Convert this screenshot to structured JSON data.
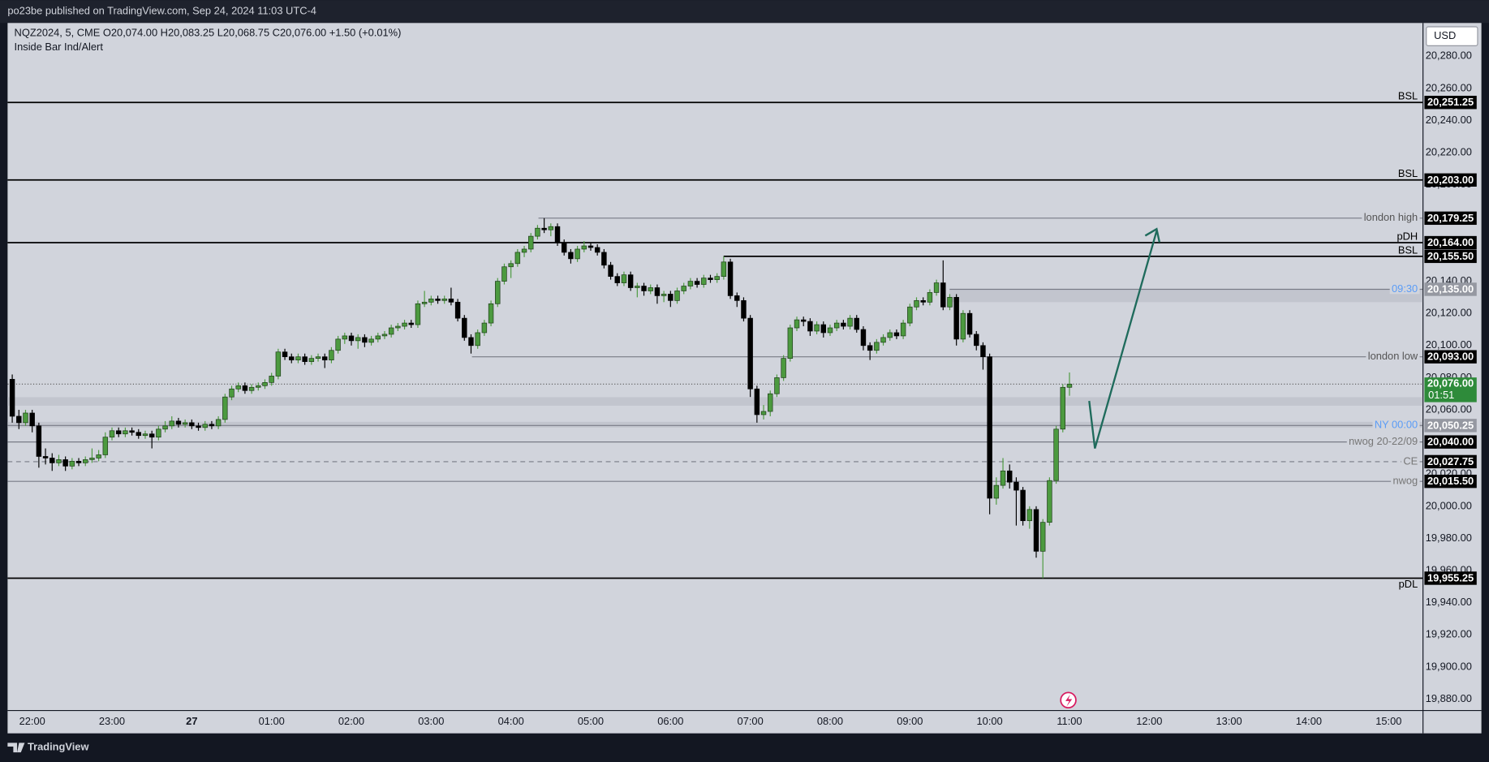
{
  "header": {
    "text": "po23be published on TradingView.com, Sep 24, 2024 11:03 UTC-4"
  },
  "footer": {
    "brand": "TradingView"
  },
  "chart_data": {
    "type": "candlestick",
    "symbol_legend": "NQZ2024, 5, CME  O20,074.00  H20,083.25  L20,068.75  C20,076.00  +1.50 (+0.01%)",
    "indicator": "Inside Bar Ind/Alert",
    "currency": "USD",
    "up_color": "#4c9a3f",
    "down_color": "#000000",
    "ohlc": [
      [
        20079,
        20082,
        20052,
        20056
      ],
      [
        20056,
        20060,
        20048,
        20052
      ],
      [
        20052,
        20060,
        20050,
        20058
      ],
      [
        20058,
        20060,
        20046,
        20050
      ],
      [
        20050,
        20052,
        20024,
        20031
      ],
      [
        20031,
        20036,
        20026,
        20030
      ],
      [
        20030,
        20033,
        20022,
        20027
      ],
      [
        20027,
        20032,
        20025,
        20029
      ],
      [
        20029,
        20031,
        20022,
        20025
      ],
      [
        20025,
        20030,
        20023,
        20028
      ],
      [
        20028,
        20030,
        20025,
        20027
      ],
      [
        20027,
        20031,
        20025,
        20029
      ],
      [
        20029,
        20036,
        20027,
        20030
      ],
      [
        20030,
        20035,
        20028,
        20032
      ],
      [
        20032,
        20046,
        20030,
        20043
      ],
      [
        20043,
        20049,
        20041,
        20047
      ],
      [
        20047,
        20049,
        20043,
        20045
      ],
      [
        20045,
        20049,
        20043,
        20047
      ],
      [
        20047,
        20049,
        20044,
        20046
      ],
      [
        20046,
        20048,
        20042,
        20044
      ],
      [
        20044,
        20047,
        20042,
        20045
      ],
      [
        20045,
        20047,
        20036,
        20043
      ],
      [
        20043,
        20050,
        20041,
        20048
      ],
      [
        20048,
        20053,
        20046,
        20050
      ],
      [
        20050,
        20056,
        20048,
        20053
      ],
      [
        20053,
        20055,
        20049,
        20051
      ],
      [
        20051,
        20054,
        20049,
        20052
      ],
      [
        20052,
        20054,
        20048,
        20050
      ],
      [
        20050,
        20052,
        20047,
        20049
      ],
      [
        20049,
        20053,
        20047,
        20051
      ],
      [
        20051,
        20053,
        20048,
        20050
      ],
      [
        20050,
        20056,
        20048,
        20054
      ],
      [
        20054,
        20070,
        20052,
        20068
      ],
      [
        20068,
        20075,
        20066,
        20073
      ],
      [
        20073,
        20077,
        20071,
        20075
      ],
      [
        20075,
        20077,
        20070,
        20072
      ],
      [
        20072,
        20076,
        20070,
        20074
      ],
      [
        20074,
        20077,
        20072,
        20075
      ],
      [
        20075,
        20079,
        20073,
        20077
      ],
      [
        20077,
        20083,
        20075,
        20081
      ],
      [
        20081,
        20098,
        20079,
        20096
      ],
      [
        20096,
        20098,
        20091,
        20093
      ],
      [
        20093,
        20095,
        20089,
        20091
      ],
      [
        20091,
        20095,
        20089,
        20093
      ],
      [
        20093,
        20095,
        20088,
        20090
      ],
      [
        20090,
        20094,
        20088,
        20092
      ],
      [
        20092,
        20095,
        20090,
        20093
      ],
      [
        20093,
        20095,
        20086,
        20091
      ],
      [
        20091,
        20099,
        20089,
        20097
      ],
      [
        20097,
        20106,
        20095,
        20104
      ],
      [
        20104,
        20108,
        20101,
        20106
      ],
      [
        20106,
        20108,
        20100,
        20103
      ],
      [
        20103,
        20107,
        20098,
        20105
      ],
      [
        20105,
        20107,
        20099,
        20102
      ],
      [
        20102,
        20106,
        20100,
        20104
      ],
      [
        20104,
        20108,
        20102,
        20106
      ],
      [
        20106,
        20109,
        20104,
        20107
      ],
      [
        20107,
        20113,
        20105,
        20111
      ],
      [
        20111,
        20114,
        20109,
        20112
      ],
      [
        20112,
        20116,
        20110,
        20114
      ],
      [
        20114,
        20116,
        20111,
        20113
      ],
      [
        20113,
        20128,
        20111,
        20126
      ],
      [
        20126,
        20134,
        20124,
        20127
      ],
      [
        20127,
        20131,
        20125,
        20129
      ],
      [
        20129,
        20131,
        20126,
        20128
      ],
      [
        20128,
        20131,
        20126,
        20129
      ],
      [
        20129,
        20136,
        20125,
        20127
      ],
      [
        20127,
        20129,
        20115,
        20117
      ],
      [
        20117,
        20119,
        20103,
        20105
      ],
      [
        20105,
        20107,
        20095,
        20100
      ],
      [
        20100,
        20110,
        20098,
        20108
      ],
      [
        20108,
        20116,
        20106,
        20114
      ],
      [
        20114,
        20128,
        20112,
        20126
      ],
      [
        20126,
        20142,
        20124,
        20140
      ],
      [
        20140,
        20151,
        20138,
        20149
      ],
      [
        20149,
        20153,
        20142,
        20151
      ],
      [
        20151,
        20160,
        20149,
        20158
      ],
      [
        20158,
        20162,
        20155,
        20160
      ],
      [
        20160,
        20170,
        20158,
        20168
      ],
      [
        20168,
        20175,
        20166,
        20173
      ],
      [
        20173,
        20179.25,
        20170,
        20172
      ],
      [
        20172,
        20176,
        20168,
        20174
      ],
      [
        20174,
        20176,
        20162,
        20164
      ],
      [
        20164,
        20166,
        20156,
        20158
      ],
      [
        20158,
        20160,
        20151,
        20154
      ],
      [
        20154,
        20162,
        20152,
        20160
      ],
      [
        20160,
        20165,
        20158,
        20162
      ],
      [
        20162,
        20164,
        20159,
        20161
      ],
      [
        20161,
        20163,
        20156,
        20158
      ],
      [
        20158,
        20160,
        20148,
        20150
      ],
      [
        20150,
        20152,
        20141,
        20143
      ],
      [
        20143,
        20145,
        20137,
        20139
      ],
      [
        20139,
        20146,
        20137,
        20144
      ],
      [
        20144,
        20146,
        20134,
        20136
      ],
      [
        20136,
        20139,
        20130,
        20137
      ],
      [
        20137,
        20139,
        20131,
        20134
      ],
      [
        20134,
        20138,
        20132,
        20136
      ],
      [
        20136,
        20138,
        20126,
        20131
      ],
      [
        20131,
        20134,
        20127,
        20132
      ],
      [
        20132,
        20134,
        20124,
        20128
      ],
      [
        20128,
        20136,
        20126,
        20134
      ],
      [
        20134,
        20139,
        20132,
        20137
      ],
      [
        20137,
        20142,
        20135,
        20140
      ],
      [
        20140,
        20142,
        20136,
        20138
      ],
      [
        20138,
        20144,
        20136,
        20142
      ],
      [
        20142,
        20144,
        20139,
        20141
      ],
      [
        20141,
        20145,
        20139,
        20143
      ],
      [
        20143,
        20155.5,
        20141,
        20152
      ],
      [
        20152,
        20154,
        20129,
        20131
      ],
      [
        20131,
        20133,
        20124,
        20128
      ],
      [
        20128,
        20130,
        20115,
        20117
      ],
      [
        20117,
        20119,
        20068,
        20073
      ],
      [
        20073,
        20075,
        20052,
        20057
      ],
      [
        20057,
        20063,
        20054,
        20059
      ],
      [
        20059,
        20072,
        20056,
        20070
      ],
      [
        20070,
        20082,
        20068,
        20080
      ],
      [
        20080,
        20094,
        20078,
        20092
      ],
      [
        20092,
        20113,
        20090,
        20111
      ],
      [
        20111,
        20118,
        20109,
        20116
      ],
      [
        20116,
        20118,
        20112,
        20115
      ],
      [
        20115,
        20117,
        20106,
        20109
      ],
      [
        20109,
        20115,
        20107,
        20113
      ],
      [
        20113,
        20115,
        20105,
        20108
      ],
      [
        20108,
        20113,
        20106,
        20111
      ],
      [
        20111,
        20116,
        20109,
        20114
      ],
      [
        20114,
        20116,
        20110,
        20112
      ],
      [
        20112,
        20119,
        20110,
        20117
      ],
      [
        20117,
        20119,
        20108,
        20110
      ],
      [
        20110,
        20112,
        20097,
        20100
      ],
      [
        20100,
        20102,
        20091,
        20097
      ],
      [
        20097,
        20104,
        20095,
        20102
      ],
      [
        20102,
        20107,
        20100,
        20105
      ],
      [
        20105,
        20110,
        20103,
        20108
      ],
      [
        20108,
        20110,
        20104,
        20106
      ],
      [
        20106,
        20116,
        20104,
        20114
      ],
      [
        20114,
        20126,
        20112,
        20124
      ],
      [
        20124,
        20130,
        20122,
        20128
      ],
      [
        20128,
        20130,
        20125,
        20127
      ],
      [
        20127,
        20135,
        20125,
        20133
      ],
      [
        20133,
        20141,
        20131,
        20139
      ],
      [
        20139,
        20153,
        20122,
        20124
      ],
      [
        20124,
        20132,
        20122,
        20130
      ],
      [
        20130,
        20132,
        20100,
        20104
      ],
      [
        20104,
        20122,
        20102,
        20120
      ],
      [
        20120,
        20122,
        20105,
        20107
      ],
      [
        20107,
        20109,
        20097,
        20100
      ],
      [
        20100,
        20102,
        20085,
        20093
      ],
      [
        20093,
        20095,
        19995,
        20005
      ],
      [
        20005,
        20018,
        20001,
        20013
      ],
      [
        20013,
        20030,
        20011,
        20022
      ],
      [
        20022,
        20026,
        20011,
        20015
      ],
      [
        20015,
        20018,
        19988,
        20010
      ],
      [
        20010,
        20012,
        19988,
        19991
      ],
      [
        19991,
        20000,
        19986,
        19998
      ],
      [
        19998,
        20000,
        19968,
        19972
      ],
      [
        19972,
        19992,
        19955.25,
        19990
      ],
      [
        19990,
        20018,
        19988,
        20016
      ],
      [
        20016,
        20050,
        20014,
        20048
      ],
      [
        20048,
        20076,
        20046,
        20074
      ],
      [
        20074,
        20083.25,
        20068.75,
        20076
      ]
    ],
    "xlim": [
      -0.7,
      212.1
    ],
    "xticks": [
      {
        "value": 3,
        "label": "22:00"
      },
      {
        "value": 15,
        "label": "23:00"
      },
      27,
      {
        "value": 39,
        "label": "01:00"
      },
      {
        "value": 51,
        "label": "02:00"
      },
      {
        "value": 63,
        "label": "03:00"
      },
      {
        "value": 75,
        "label": "04:00"
      },
      {
        "value": 87,
        "label": "05:00"
      },
      {
        "value": 99,
        "label": "06:00"
      },
      {
        "value": 111,
        "label": "07:00"
      },
      {
        "value": 123,
        "label": "08:00"
      },
      {
        "value": 135,
        "label": "09:00"
      },
      {
        "value": 147,
        "label": "10:00"
      },
      {
        "value": 159,
        "label": "11:00"
      },
      {
        "value": 171,
        "label": "12:00"
      },
      {
        "value": 183,
        "label": "13:00"
      },
      {
        "value": 195,
        "label": "14:00"
      },
      {
        "value": 207,
        "label": "15:00"
      }
    ],
    "ylim": [
      19872.9,
      20300.7
    ],
    "yticks": [
      {
        "value": 20280,
        "label": "20,280.00"
      },
      {
        "value": 20260,
        "label": "20,260.00"
      },
      {
        "value": 20240,
        "label": "20,240.00"
      },
      {
        "value": 20220,
        "label": "20,220.00"
      },
      {
        "value": 20200,
        "label": "20,200.00"
      },
      {
        "value": 20140,
        "label": "20,140.00"
      },
      {
        "value": 20120,
        "label": "20,120.00"
      },
      {
        "value": 20100,
        "label": "20,100.00"
      },
      {
        "value": 20080,
        "label": "20,080.00"
      },
      {
        "value": 20060,
        "label": "20,060.00"
      },
      {
        "value": 20020,
        "label": "20,020.00"
      },
      {
        "value": 20000,
        "label": "20,000.00"
      },
      {
        "value": 19980,
        "label": "19,980.00"
      },
      {
        "value": 19960,
        "label": "19,960.00"
      },
      {
        "value": 19940,
        "label": "19,940.00"
      },
      {
        "value": 19920,
        "label": "19,920.00"
      },
      {
        "value": 19900,
        "label": "19,900.00"
      },
      {
        "value": 19880,
        "label": "19,880.00"
      }
    ],
    "levels": [
      {
        "name": "BSL",
        "value": 20251.25,
        "value_label": "20,251.25",
        "color": "#000000",
        "badge_color": "#000000"
      },
      {
        "name": "BSL",
        "value": 20203.0,
        "value_label": "20,203.00",
        "color": "#000000",
        "badge_color": "#000000"
      },
      {
        "name": "london high",
        "value": 20179.25,
        "value_label": "20,179.25",
        "color": "#787b86",
        "badge_color": "#000000"
      },
      {
        "name": "pDH",
        "value": 20164.0,
        "value_label": "20,164.00",
        "color": "#000000",
        "badge_color": "#000000"
      },
      {
        "name": "BSL",
        "value": 20155.5,
        "value_label": "20,155.50",
        "color": "#000000",
        "badge_color": "#000000"
      },
      {
        "name": "09:30",
        "value": 20135.0,
        "value_label": "20,135.00",
        "color": "#787b86",
        "badge_color": "#9598a1"
      },
      {
        "name": "london low",
        "value": 20093.0,
        "value_label": "20,093.00",
        "color": "#787b86",
        "badge_color": "#000000"
      },
      {
        "name": "NY 00:00",
        "value": 20050.25,
        "value_label": "20,050.25",
        "color": "#787b86",
        "badge_color": "#9598a1"
      },
      {
        "name": "nwog 20-22/09",
        "value": 20040.0,
        "value_label": "20,040.00",
        "color": "#787b86",
        "badge_color": "#000000"
      },
      {
        "name": "CE",
        "value": 20027.75,
        "value_label": "20,027.75",
        "color": "#787b86",
        "badge_color": "#000000"
      },
      {
        "name": "nwog",
        "value": 20015.5,
        "value_label": "20,015.50",
        "color": "#787b86",
        "badge_color": "#000000"
      },
      {
        "name": "pDL",
        "value": 19955.25,
        "value_label": "19,955.25",
        "color": "#000000",
        "badge_color": "#000000"
      }
    ],
    "last_price": {
      "value": 20076.0,
      "value_label": "20,076.00",
      "countdown": "01:51",
      "color": "#2e8b3a"
    }
  }
}
